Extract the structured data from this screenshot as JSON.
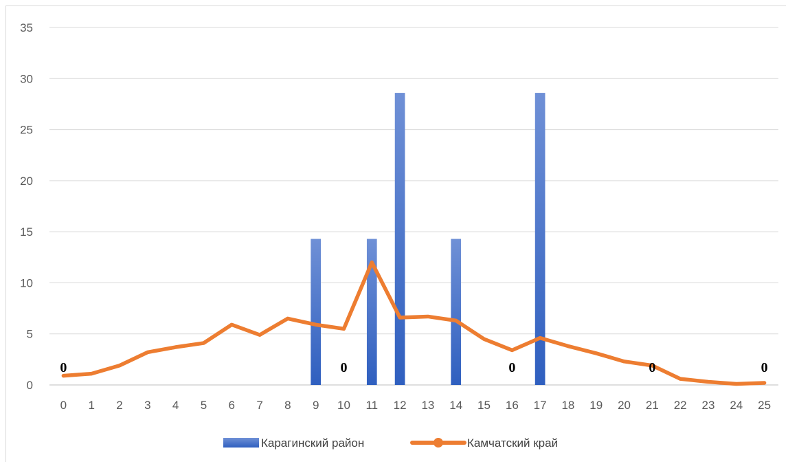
{
  "chart_data": {
    "type": "bar",
    "x": [
      0,
      1,
      2,
      3,
      4,
      5,
      6,
      7,
      8,
      9,
      10,
      11,
      12,
      13,
      14,
      15,
      16,
      17,
      18,
      19,
      20,
      21,
      22,
      23,
      24,
      25
    ],
    "ylim": [
      0,
      35
    ],
    "yticks": [
      0,
      5,
      10,
      15,
      20,
      25,
      30,
      35
    ],
    "grid": true,
    "legend_position": "bottom",
    "series": [
      {
        "name": "Карагинский район",
        "kind": "bar",
        "color": "#4472c4",
        "values": [
          0,
          0,
          0,
          0,
          0,
          0,
          0,
          0,
          0,
          14.3,
          0,
          14.3,
          28.6,
          0,
          14.3,
          0,
          0,
          28.6,
          0,
          0,
          0,
          0,
          0,
          0,
          0,
          0
        ]
      },
      {
        "name": "Камчатский край",
        "kind": "line",
        "color": "#ed7d31",
        "values": [
          0.9,
          1.1,
          1.9,
          3.2,
          3.7,
          4.1,
          5.9,
          4.9,
          6.5,
          5.9,
          5.5,
          12.0,
          6.6,
          6.7,
          6.3,
          4.5,
          3.4,
          4.6,
          3.8,
          3.1,
          2.3,
          1.9,
          0.6,
          0.3,
          0.1,
          0.2
        ]
      }
    ],
    "annotations": [
      {
        "x": 0,
        "text": "0"
      },
      {
        "x": 10,
        "text": "0"
      },
      {
        "x": 16,
        "text": "0"
      },
      {
        "x": 21,
        "text": "0"
      },
      {
        "x": 25,
        "text": "0"
      }
    ]
  }
}
